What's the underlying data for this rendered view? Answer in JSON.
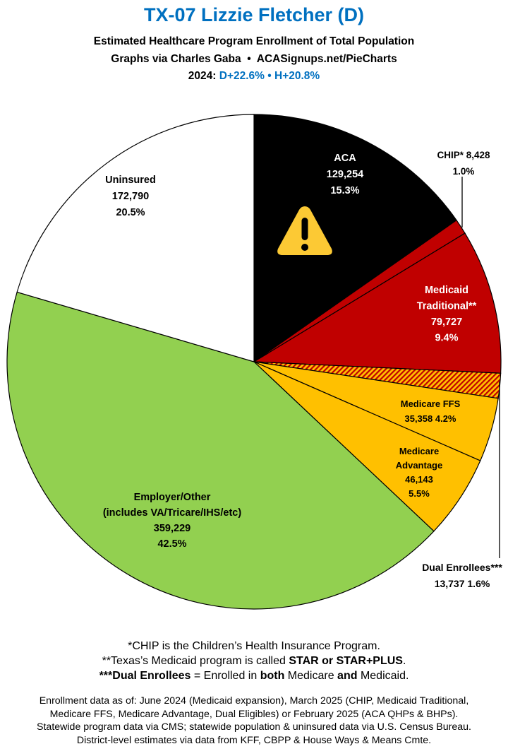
{
  "header": {
    "title": "TX-07 Lizzie Fletcher (D)",
    "subtitle": "Estimated Healthcare Program Enrollment of Total Population",
    "credit_left": "Graphs via Charles Gaba",
    "credit_sep": "•",
    "credit_right": "ACASignups.net/PieCharts",
    "year_label": "2024:",
    "margin_d": "D+22.6%",
    "margin_sep": "•",
    "margin_h": "H+20.8%"
  },
  "chart_data": {
    "type": "pie",
    "start": "top",
    "direction": "clockwise",
    "slices": [
      {
        "name": "ACA",
        "value": 129254,
        "percent": 15.3,
        "color": "#000000",
        "label_color": "#ffffff",
        "label": [
          "ACA",
          "129,254",
          "15.3%"
        ],
        "icon": "warning-icon"
      },
      {
        "name": "CHIP*",
        "value": 8428,
        "percent": 1.0,
        "color": "#c00000",
        "label_color": "#000000",
        "label": [
          "CHIP* 8,428",
          "1.0%"
        ]
      },
      {
        "name": "Medicaid Traditional**",
        "value": 79727,
        "percent": 9.4,
        "color": "#c00000",
        "label_color": "#ffffff",
        "label": [
          "Medicaid",
          "Traditional**",
          "79,727",
          "9.4%"
        ]
      },
      {
        "name": "Dual Enrollees***",
        "value": 13737,
        "percent": 1.6,
        "color": "#ffc000",
        "pattern": "hatched-red",
        "label_color": "#000000",
        "label": [
          "Dual Enrollees***",
          "13,737 1.6%"
        ]
      },
      {
        "name": "Medicare FFS",
        "value": 35358,
        "percent": 4.2,
        "color": "#ffc000",
        "label_color": "#000000",
        "label": [
          "Medicare FFS",
          "35,358 4.2%"
        ]
      },
      {
        "name": "Medicare Advantage",
        "value": 46143,
        "percent": 5.5,
        "color": "#ffc000",
        "label_color": "#000000",
        "label": [
          "Medicare",
          "Advantage",
          "46,143",
          "5.5%"
        ]
      },
      {
        "name": "Employer/Other",
        "value": 359229,
        "percent": 42.5,
        "color": "#92d050",
        "label_color": "#000000",
        "label": [
          "Employer/Other",
          "(includes VA/Tricare/IHS/etc)",
          "359,229",
          "42.5%"
        ]
      },
      {
        "name": "Uninsured",
        "value": 172790,
        "percent": 20.5,
        "color": "#ffffff",
        "label_color": "#000000",
        "label": [
          "Uninsured",
          "172,790",
          "20.5%"
        ]
      }
    ]
  },
  "notes": {
    "chip": "*CHIP is the Children’s Health Insurance Program.",
    "medicaid_pre": "**Texas’s Medicaid program is called ",
    "medicaid_bold": "STAR or STAR+PLUS",
    "medicaid_post": ".",
    "dual_bold": "***Dual Enrollees",
    "dual_mid1": " = Enrolled in ",
    "dual_both": "both",
    "dual_mid2": " Medicare ",
    "dual_and": "and",
    "dual_end": " Medicaid."
  },
  "footer": {
    "line1": "Enrollment data as of: June 2024 (Medicaid expansion), March 2025 (CHIP, Medicaid Traditional,",
    "line2": "Medicare FFS, Medicare Advantage, Dual Eligibles) or February 2025 (ACA QHPs & BHPs).",
    "line3": "Statewide program data via CMS; statewide population & uninsured data via U.S. Census Bureau.",
    "line4": "District-level estimates via data from KFF, CBPP & House Ways & Means Cmte."
  }
}
